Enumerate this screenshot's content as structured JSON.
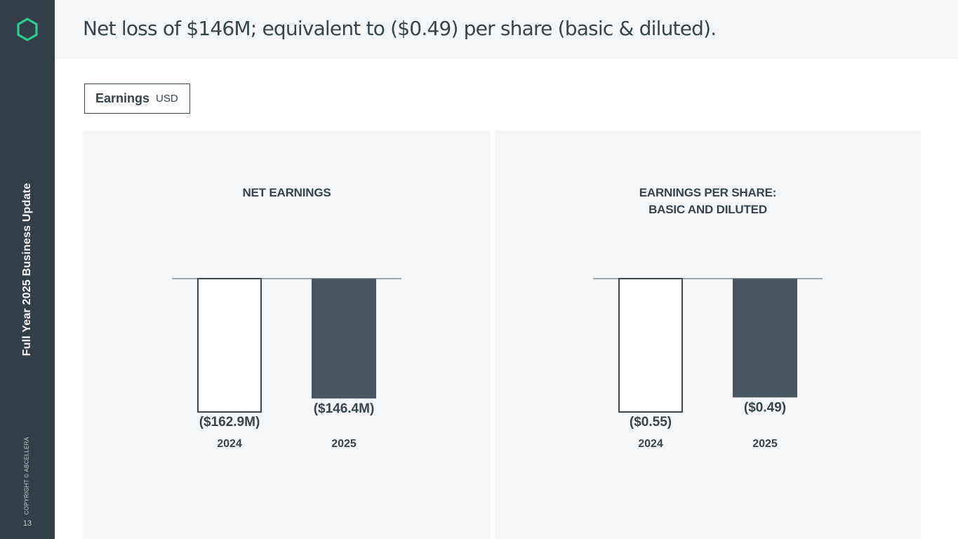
{
  "slide": {
    "headline": "Net loss of $146M; equivalent to ($0.49) per share (basic & diluted).",
    "sidebar_title": "Full Year 2025 Business Update",
    "copyright": "COPYRIGHT © ABCELLERA",
    "page_number": "13",
    "tag_label": "Earnings",
    "tag_unit": "USD",
    "colors": {
      "sidebar": "#333f46",
      "accent": "#2ecc8f",
      "bar_2025": "#4a565e",
      "panel_bg": "#f5f6f7"
    },
    "logo_icon": "hexagon-logo-icon"
  },
  "chart_data": [
    {
      "type": "bar",
      "title_lines": [
        "NET EARNINGS"
      ],
      "categories": [
        "2024",
        "2025"
      ],
      "values": [
        -162.9,
        -146.4
      ],
      "labels": [
        "($162.9M)",
        "($146.4M)"
      ],
      "styles": [
        "outline",
        "filled"
      ],
      "ylim": [
        -162.9,
        0
      ]
    },
    {
      "type": "bar",
      "title_lines": [
        "EARNINGS PER SHARE:",
        "BASIC AND DILUTED"
      ],
      "categories": [
        "2024",
        "2025"
      ],
      "values": [
        -0.55,
        -0.49
      ],
      "labels": [
        "($0.55)",
        "($0.49)"
      ],
      "styles": [
        "outline",
        "filled"
      ],
      "ylim": [
        -0.55,
        0
      ]
    }
  ]
}
